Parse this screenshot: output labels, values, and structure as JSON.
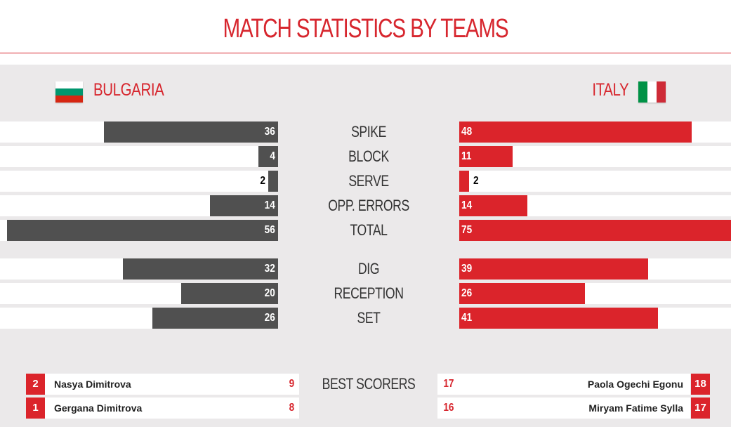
{
  "title": "MATCH STATISTICS BY TEAMS",
  "teams": {
    "left": {
      "name": "BULGARIA",
      "flag_icon": "bulgaria-flag-icon"
    },
    "right": {
      "name": "ITALY",
      "flag_icon": "italy-flag-icon"
    }
  },
  "colors": {
    "accent": "#d7262e",
    "left_bar": "#505050",
    "right_bar": "#db242b",
    "panel": "#ebe9ea"
  },
  "chart_data": {
    "type": "bar",
    "categories": [
      "SPIKE",
      "BLOCK",
      "SERVE",
      "OPP. ERRORS",
      "TOTAL",
      "DIG",
      "RECEPTION",
      "SET"
    ],
    "series": [
      {
        "name": "BULGARIA",
        "values": [
          36,
          4,
          2,
          14,
          56,
          32,
          20,
          26
        ]
      },
      {
        "name": "ITALY",
        "values": [
          48,
          11,
          2,
          14,
          75,
          39,
          26,
          41
        ]
      }
    ]
  },
  "best_scorers": {
    "label": "BEST SCORERS",
    "left": [
      {
        "number": "2",
        "name": "Nasya Dimitrova",
        "points": "9"
      },
      {
        "number": "1",
        "name": "Gergana Dimitrova",
        "points": "8"
      }
    ],
    "right": [
      {
        "number": "18",
        "name": "Paola Ogechi Egonu",
        "points": "17"
      },
      {
        "number": "17",
        "name": "Miryam Fatime Sylla",
        "points": "16"
      }
    ]
  }
}
